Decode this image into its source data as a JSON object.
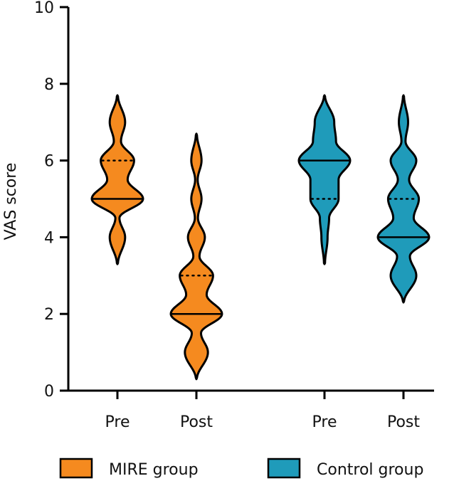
{
  "chart_data": {
    "type": "violin",
    "title": "",
    "ylabel": "VAS score",
    "xlabel": "",
    "ylim": [
      0,
      10
    ],
    "yticks": [
      0,
      2,
      4,
      6,
      8,
      10
    ],
    "categories": [
      "Pre",
      "Post",
      "Pre",
      "Post"
    ],
    "series": [
      {
        "name": "MIRE group",
        "color": "#F58A1F",
        "violins": [
          {
            "label": "Pre",
            "median": 5,
            "q1": 5,
            "q3": 6,
            "min": 3.3,
            "max": 7.7,
            "density": [
              [
                3.3,
                0.02
              ],
              [
                4.0,
                0.3
              ],
              [
                4.5,
                0.08
              ],
              [
                5.0,
                1.0
              ],
              [
                5.5,
                0.4
              ],
              [
                6.0,
                0.65
              ],
              [
                6.5,
                0.14
              ],
              [
                7.0,
                0.3
              ],
              [
                7.7,
                0.02
              ]
            ]
          },
          {
            "label": "Post",
            "median": 2,
            "q1": 2,
            "q3": 3,
            "min": 0.3,
            "max": 6.7,
            "density": [
              [
                0.3,
                0.02
              ],
              [
                1.0,
                0.45
              ],
              [
                1.5,
                0.18
              ],
              [
                2.0,
                1.0
              ],
              [
                2.5,
                0.4
              ],
              [
                3.0,
                0.65
              ],
              [
                3.5,
                0.12
              ],
              [
                4.0,
                0.33
              ],
              [
                4.5,
                0.06
              ],
              [
                5.0,
                0.2
              ],
              [
                5.5,
                0.05
              ],
              [
                6.0,
                0.2
              ],
              [
                6.7,
                0.02
              ]
            ]
          }
        ]
      },
      {
        "name": "Control group",
        "color": "#1F9BBA",
        "violins": [
          {
            "label": "Pre",
            "median": 6,
            "q1": 5,
            "q3": 6,
            "min": 3.3,
            "max": 7.7,
            "density": [
              [
                3.3,
                0.02
              ],
              [
                4.0,
                0.12
              ],
              [
                4.5,
                0.18
              ],
              [
                5.0,
                0.55
              ],
              [
                5.5,
                0.55
              ],
              [
                6.0,
                1.0
              ],
              [
                6.5,
                0.45
              ],
              [
                7.0,
                0.38
              ],
              [
                7.7,
                0.02
              ]
            ]
          },
          {
            "label": "Post",
            "median": 4,
            "q1": 4,
            "q3": 5,
            "min": 2.3,
            "max": 7.7,
            "density": [
              [
                2.3,
                0.02
              ],
              [
                3.0,
                0.5
              ],
              [
                3.5,
                0.25
              ],
              [
                4.0,
                1.0
              ],
              [
                4.5,
                0.4
              ],
              [
                5.0,
                0.6
              ],
              [
                5.5,
                0.22
              ],
              [
                6.0,
                0.5
              ],
              [
                6.5,
                0.08
              ],
              [
                7.0,
                0.18
              ],
              [
                7.7,
                0.02
              ]
            ]
          }
        ]
      }
    ],
    "legend": [
      "MIRE group",
      "Control group"
    ],
    "legend_position": "bottom"
  }
}
